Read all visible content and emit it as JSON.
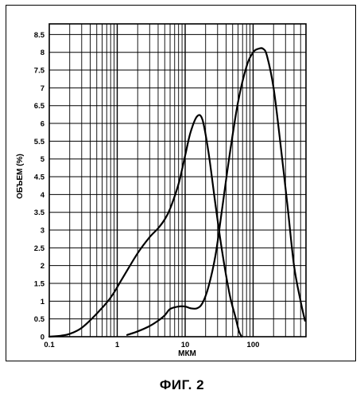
{
  "caption": "ФИГ. 2",
  "chart_data": {
    "type": "line",
    "title": "",
    "xlabel": "МКМ",
    "ylabel": "ОБЪЕМ (%)",
    "xscale": "log",
    "xlim": [
      0.1,
      600
    ],
    "ylim": [
      0,
      8.8
    ],
    "grid": true,
    "x_ticks": [
      {
        "value": 0.1,
        "label": "0.1"
      },
      {
        "value": 1,
        "label": "1"
      },
      {
        "value": 10,
        "label": "10"
      },
      {
        "value": 100,
        "label": "100"
      }
    ],
    "y_ticks": [
      {
        "value": 0,
        "label": "0"
      },
      {
        "value": 0.5,
        "label": "0.5"
      },
      {
        "value": 1,
        "label": "1"
      },
      {
        "value": 1.5,
        "label": "1.5"
      },
      {
        "value": 2,
        "label": "2"
      },
      {
        "value": 2.5,
        "label": "2.5"
      },
      {
        "value": 3,
        "label": "3"
      },
      {
        "value": 3.5,
        "label": "3.5"
      },
      {
        "value": 4,
        "label": "4"
      },
      {
        "value": 4.5,
        "label": "4.5"
      },
      {
        "value": 5,
        "label": "5"
      },
      {
        "value": 5.5,
        "label": "5.5"
      },
      {
        "value": 6,
        "label": "6"
      },
      {
        "value": 6.5,
        "label": "6.5"
      },
      {
        "value": 7,
        "label": "7"
      },
      {
        "value": 7.5,
        "label": "7.5"
      },
      {
        "value": 8,
        "label": "8"
      },
      {
        "value": 8.5,
        "label": "8.5"
      }
    ],
    "series": [
      {
        "color": "#000000",
        "x": [
          0.1,
          0.15,
          0.2,
          0.3,
          0.5,
          0.8,
          1.2,
          2,
          3,
          4,
          5,
          6,
          8,
          10,
          12,
          15,
          18,
          22,
          28,
          35,
          45,
          55,
          62,
          68
        ],
        "y": [
          0,
          0.03,
          0.08,
          0.25,
          0.65,
          1.1,
          1.65,
          2.35,
          2.8,
          3.05,
          3.3,
          3.6,
          4.3,
          5.1,
          5.75,
          6.2,
          6.1,
          5.2,
          3.7,
          2.4,
          1.2,
          0.55,
          0.15,
          0
        ]
      },
      {
        "color": "#000000",
        "x": [
          1.4,
          2,
          3,
          4,
          5,
          6,
          8,
          10,
          12,
          15,
          18,
          22,
          28,
          35,
          45,
          60,
          80,
          100,
          120,
          140,
          160,
          200,
          250,
          320,
          400,
          500,
          580
        ],
        "y": [
          0.05,
          0.15,
          0.3,
          0.45,
          0.6,
          0.78,
          0.85,
          0.85,
          0.8,
          0.8,
          0.95,
          1.4,
          2.3,
          3.6,
          5.1,
          6.6,
          7.6,
          8.0,
          8.1,
          8.1,
          7.9,
          7.0,
          5.5,
          3.7,
          2.0,
          1.0,
          0.45
        ]
      }
    ]
  }
}
